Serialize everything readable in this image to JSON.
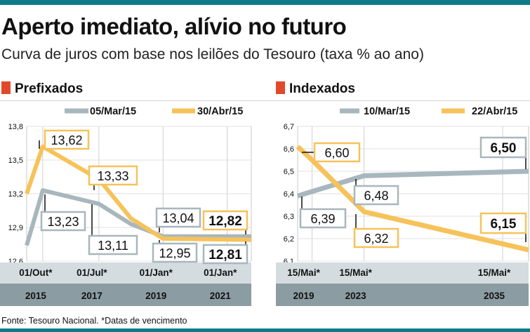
{
  "header": {
    "title": "Aperto imediato, alívio no futuro",
    "subtitle": "Curva de juros com base nos leilões do Tesouro (taxa % ao ano)"
  },
  "colors": {
    "accent": "#0e7c86",
    "series_old": "#a8b7bd",
    "series_new": "#f6c25a",
    "square": "#e2492b",
    "axis_band": "#d4dce0",
    "year_band": "#8c9ca3"
  },
  "source": "Fonte: Tesouro Nacional. *Datas de vencimento",
  "chart_data": [
    {
      "type": "line",
      "section_title": "Prefixados",
      "ylim": [
        12.6,
        13.8
      ],
      "yticks": [
        "13,8",
        "13,5",
        "13,2",
        "12,9",
        "12,6"
      ],
      "ytick_values": [
        13.8,
        13.5,
        13.2,
        12.9,
        12.6
      ],
      "x_tick_labels": [
        {
          "date": "01/Out*",
          "year": "2015"
        },
        {
          "date": "01/Jul*",
          "year": "2017"
        },
        {
          "date": "01/Jan*",
          "year": "2019"
        },
        {
          "date": "01/Jan*",
          "year": "2021"
        }
      ],
      "x_tick_positions": [
        0.5,
        2.25,
        4.25,
        6.25
      ],
      "xlim": [
        0,
        7
      ],
      "series": [
        {
          "name": "05/Mar/15",
          "color": "#a8b7bd",
          "x": [
            0,
            0.5,
            2.25,
            3.25,
            4.25,
            7
          ],
          "y": [
            12.74,
            13.23,
            13.11,
            12.93,
            12.82,
            12.82
          ]
        },
        {
          "name": "30/Abr/15",
          "color": "#f6c25a",
          "x": [
            0,
            0.5,
            2.25,
            3.25,
            4.25,
            7
          ],
          "y": [
            13.2,
            13.62,
            13.33,
            12.98,
            12.8,
            12.79
          ]
        }
      ],
      "annotations": [
        {
          "label": "13,62",
          "bold": false
        },
        {
          "label": "13,33",
          "bold": false
        },
        {
          "label": "13,23",
          "bold": false
        },
        {
          "label": "13,11",
          "bold": false
        },
        {
          "label": "13,04",
          "bold": false
        },
        {
          "label": "12,95",
          "bold": false
        },
        {
          "label": "12,82",
          "bold": true
        },
        {
          "label": "12,81",
          "bold": true
        }
      ]
    },
    {
      "type": "line",
      "section_title": "Indexados",
      "ylim": [
        6.1,
        6.7
      ],
      "yticks": [
        "6,7",
        "6,6",
        "6,5",
        "6,4",
        "6,3",
        "6,2",
        "6,1"
      ],
      "ytick_values": [
        6.7,
        6.6,
        6.5,
        6.4,
        6.3,
        6.2,
        6.1
      ],
      "x_tick_labels": [
        {
          "date": "15/Mai*",
          "year": "2019"
        },
        {
          "date": "15/Mai*",
          "year": "2023"
        },
        {
          "date": "15/Mai*",
          "year": "2035"
        }
      ],
      "x_tick_positions": [
        0.5,
        2.3,
        7.1
      ],
      "xlim": [
        0,
        8
      ],
      "series": [
        {
          "name": "10/Mar/15",
          "color": "#a8b7bd",
          "x": [
            0,
            0.5,
            2.3,
            8
          ],
          "y": [
            6.39,
            6.41,
            6.48,
            6.5
          ]
        },
        {
          "name": "22/Abr/15",
          "color": "#f6c25a",
          "x": [
            0,
            0.5,
            2.3,
            8
          ],
          "y": [
            6.61,
            6.55,
            6.32,
            6.15
          ]
        }
      ],
      "annotations": [
        {
          "label": "6,60",
          "bold": false
        },
        {
          "label": "6,48",
          "bold": false
        },
        {
          "label": "6,39",
          "bold": false
        },
        {
          "label": "6,32",
          "bold": false
        },
        {
          "label": "6,50",
          "bold": true
        },
        {
          "label": "6,15",
          "bold": true
        }
      ]
    }
  ]
}
